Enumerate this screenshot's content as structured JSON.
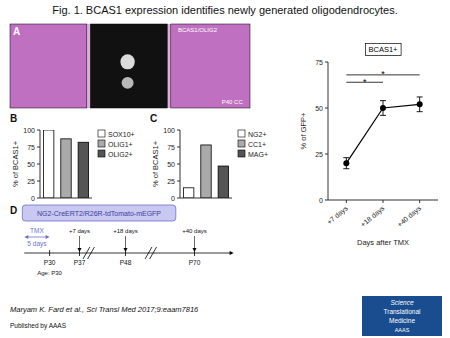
{
  "title": "Fig. 1. BCAS1 expression identifies newly generated oligodendrocytes.",
  "annotations": [
    "A",
    "BCAS1/OLIG2",
    "P40 CC",
    "D",
    "NG2-CreERT2/R26R-tdTomato-mEGFP",
    "TMX",
    "5 days",
    "P30",
    "P37",
    "P48",
    "P70",
    "Age: P30",
    "+7 days",
    "+18 days",
    "+40 days",
    "Maryam K. Fard et al., Sci Transl Med 2017;9:eaam7816",
    "Published by AAAS",
    "Science",
    "Translational",
    "Medicine",
    "AAAS"
  ],
  "chart_data": [
    {
      "type": "bar",
      "title": "B",
      "categories": [
        "SOX10+",
        "OLIG1+",
        "OLIG2+"
      ],
      "values": [
        100,
        87,
        82
      ],
      "colors": [
        "#ffffff",
        "#aaaaaa",
        "#555555"
      ],
      "ylabel": "% of BCAS1+",
      "ylim": [
        0,
        100
      ],
      "yticks": [
        0,
        25,
        50,
        75,
        100
      ],
      "legend": "right"
    },
    {
      "type": "bar",
      "title": "C",
      "categories": [
        "NG2+",
        "CC1+",
        "MAG+"
      ],
      "values": [
        15,
        78,
        47
      ],
      "colors": [
        "#ffffff",
        "#aaaaaa",
        "#555555"
      ],
      "ylabel": "% of BCAS1+",
      "ylim": [
        0,
        100
      ],
      "yticks": [
        0,
        25,
        50,
        75,
        100
      ],
      "legend": "right"
    },
    {
      "type": "line",
      "title": "BCAS1+",
      "categories": [
        "+7 days",
        "+18 days",
        "+40 days"
      ],
      "values": [
        20,
        50,
        52
      ],
      "yerr": [
        3,
        4,
        4
      ],
      "color": "#000000",
      "marker": "circle",
      "xlabel": "Days after TMX",
      "ylabel": "% of GFP+",
      "ylim": [
        0,
        75
      ],
      "yticks": [
        0,
        25,
        50,
        75
      ],
      "annotations": [
        {
          "text": "*",
          "from": "+7 days",
          "to": "+18 days",
          "y": 64
        },
        {
          "text": "*",
          "from": "+7 days",
          "to": "+40 days",
          "y": 68
        }
      ]
    }
  ]
}
